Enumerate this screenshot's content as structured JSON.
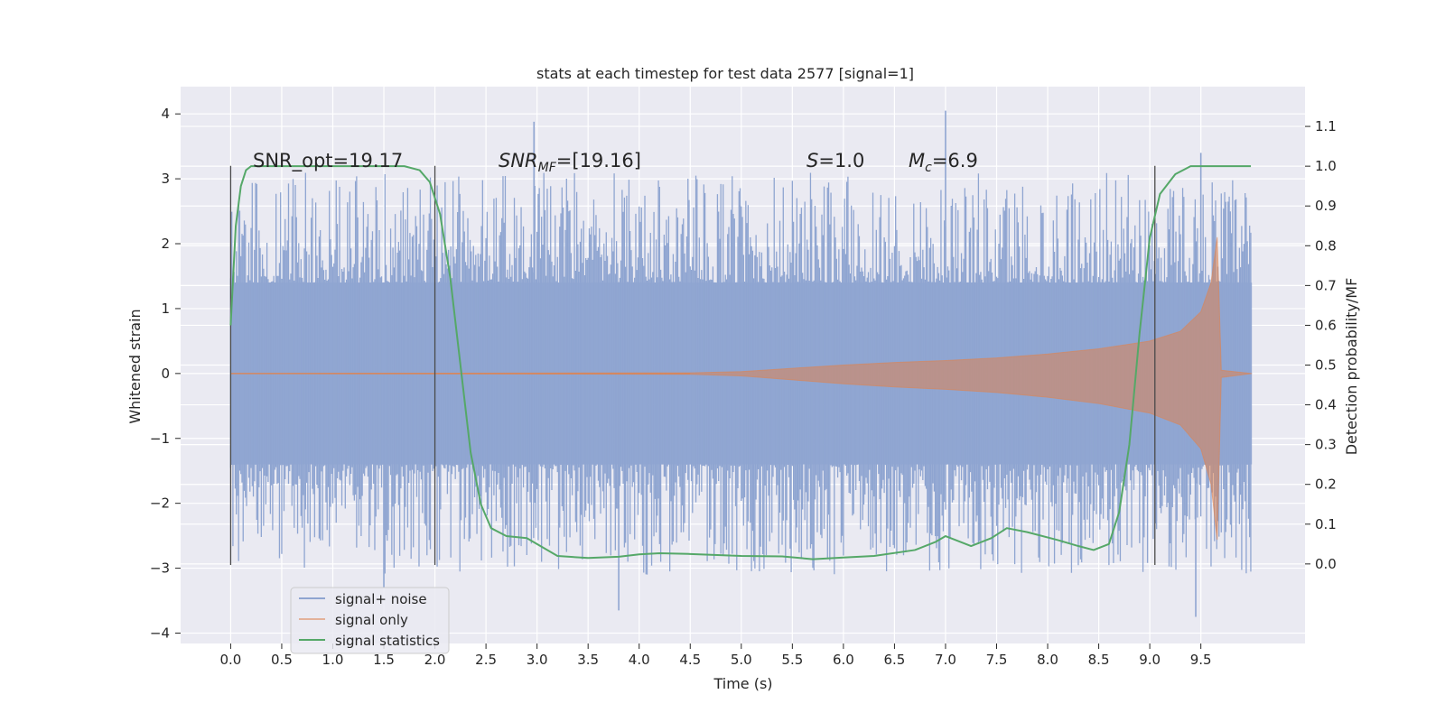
{
  "chart_data": {
    "type": "line",
    "title": "stats at each timestep for test data 2577 [signal=1]",
    "xlabel": "Time (s)",
    "ylabel_left": "Whitened strain",
    "ylabel_right": "Detection probability/MF",
    "xlim": [
      -0.49,
      10.52
    ],
    "ylim_left": [
      -4.16,
      4.42
    ],
    "ylim_right": [
      -0.2,
      1.2
    ],
    "grid": true,
    "legend_position": "lower-left",
    "x_ticks": [
      "0.0",
      "0.5",
      "1.0",
      "1.5",
      "2.0",
      "2.5",
      "3.0",
      "3.5",
      "4.0",
      "4.5",
      "5.0",
      "5.5",
      "6.0",
      "6.5",
      "7.0",
      "7.5",
      "8.0",
      "8.5",
      "9.0",
      "9.5"
    ],
    "y_ticks_left": [
      "4",
      "3",
      "2",
      "1",
      "0",
      "−1",
      "−2",
      "−3",
      "−4"
    ],
    "y_ticks_right": [
      "1.1",
      "1.0",
      "0.9",
      "0.8",
      "0.7",
      "0.6",
      "0.5",
      "0.4",
      "0.3",
      "0.2",
      "0.1",
      "0.0"
    ],
    "annotations": {
      "snr_opt": "SNR_opt=19.17",
      "snr_mf_main": "SNR",
      "snr_mf_sub": "MF",
      "snr_mf_rest": "=[19.16]",
      "s_italic": "S",
      "s_rest": "=1.0",
      "mc_italic": "M",
      "mc_sub": "c",
      "mc_rest": "=6.9"
    },
    "vertical_markers_x": [
      0.0,
      2.0,
      9.05
    ],
    "vertical_marker_range": [
      -2.95,
      3.2
    ],
    "noise_envelope": {
      "x_range": [
        0.0,
        10.0
      ],
      "typical_half_width": 1.4,
      "peak_examples": [
        [
          2.97,
          3.88
        ],
        [
          7.0,
          4.05
        ],
        [
          9.5,
          3.4
        ],
        [
          3.8,
          -3.65
        ],
        [
          9.45,
          -3.75
        ],
        [
          1.5,
          -3.3
        ]
      ]
    },
    "series": [
      {
        "name": "signal+ noise",
        "color": "#8fa5d1",
        "style": "dense-noise-bars"
      },
      {
        "name": "signal only",
        "color": "#dd8452",
        "style": "chirp",
        "x": [
          0.0,
          4.5,
          5.0,
          5.5,
          6.0,
          6.5,
          7.0,
          7.5,
          8.0,
          8.5,
          9.0,
          9.3,
          9.5,
          9.6,
          9.66,
          9.7,
          10.0
        ],
        "amplitude": [
          0.0,
          0.01,
          0.03,
          0.08,
          0.13,
          0.17,
          0.2,
          0.24,
          0.3,
          0.38,
          0.5,
          0.65,
          0.95,
          1.4,
          2.1,
          0.05,
          0.0
        ]
      },
      {
        "name": "signal statistics",
        "color": "#55a868",
        "x": [
          0.0,
          0.05,
          0.1,
          0.15,
          0.2,
          0.3,
          0.5,
          1.0,
          1.5,
          1.7,
          1.85,
          1.95,
          2.05,
          2.15,
          2.25,
          2.35,
          2.45,
          2.55,
          2.7,
          2.9,
          3.2,
          3.5,
          3.8,
          4.0,
          4.2,
          4.5,
          5.0,
          5.4,
          5.7,
          6.0,
          6.3,
          6.7,
          6.9,
          7.0,
          7.1,
          7.25,
          7.45,
          7.6,
          7.8,
          8.1,
          8.3,
          8.45,
          8.6,
          8.7,
          8.8,
          8.9,
          9.0,
          9.1,
          9.25,
          9.4,
          9.6,
          9.99
        ],
        "y": [
          0.6,
          0.85,
          0.95,
          0.99,
          1.0,
          1.0,
          1.0,
          1.0,
          1.0,
          1.0,
          0.99,
          0.96,
          0.88,
          0.72,
          0.5,
          0.28,
          0.15,
          0.09,
          0.07,
          0.065,
          0.02,
          0.015,
          0.018,
          0.024,
          0.027,
          0.025,
          0.02,
          0.019,
          0.012,
          0.016,
          0.02,
          0.035,
          0.055,
          0.07,
          0.06,
          0.045,
          0.065,
          0.09,
          0.08,
          0.06,
          0.045,
          0.035,
          0.05,
          0.13,
          0.3,
          0.58,
          0.82,
          0.93,
          0.98,
          1.0,
          1.0,
          1.0
        ]
      }
    ]
  }
}
